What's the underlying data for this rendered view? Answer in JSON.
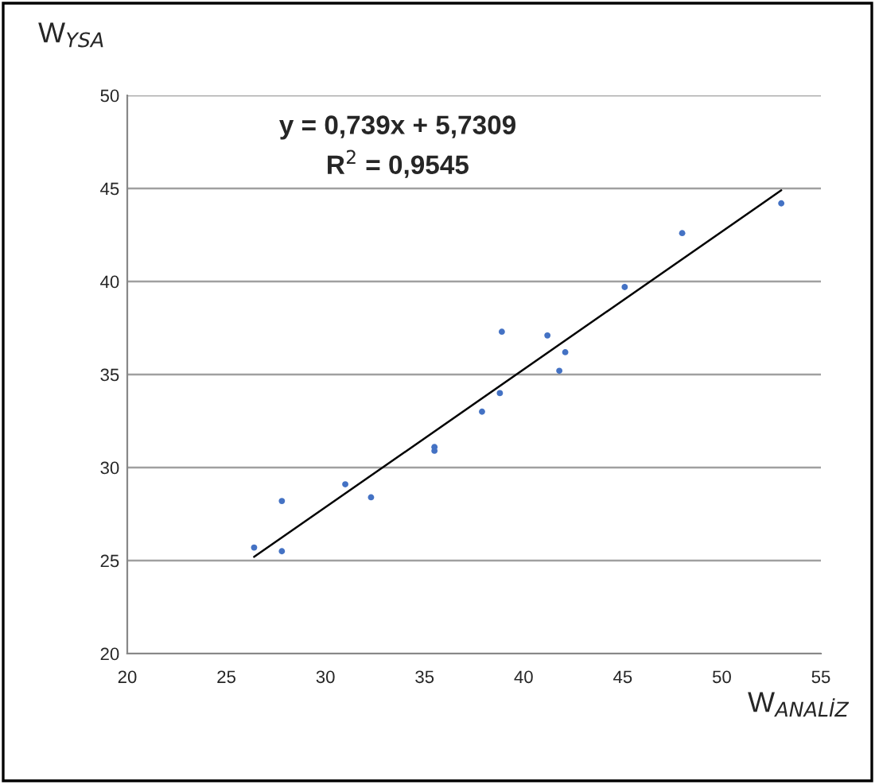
{
  "chart_data": {
    "type": "scatter",
    "xlabel": "W$_{ANALİZ}$",
    "ylabel": "W$_{YSA}$",
    "annotations": [
      "y = 0,739x + 5,7309",
      "R$^{2}$ = 0,9545"
    ],
    "series": [
      {
        "color": "#4472c4",
        "marker": "circle",
        "x": [
          26.4,
          27.8,
          27.8,
          31.0,
          32.3,
          35.5,
          35.5,
          37.9,
          38.8,
          38.9,
          41.2,
          41.8,
          42.1,
          45.1,
          48.0,
          53.0
        ],
        "values": [
          25.7,
          28.2,
          25.5,
          29.1,
          28.4,
          31.1,
          30.9,
          33.0,
          34.0,
          37.3,
          37.1,
          35.2,
          36.2,
          39.7,
          42.6,
          44.2
        ]
      },
      {
        "type": "line",
        "color": "#000000",
        "marker": "none",
        "x": [
          26.4,
          53.0
        ],
        "values": [
          25.2,
          44.9
        ]
      }
    ],
    "xlim": [
      20,
      55
    ],
    "ylim": [
      20,
      50
    ],
    "xticks": [
      20,
      25,
      30,
      35,
      40,
      45,
      50,
      55
    ],
    "yticks": [
      20,
      25,
      30,
      35,
      40,
      45,
      50
    ],
    "grid": "y",
    "legend": false
  }
}
